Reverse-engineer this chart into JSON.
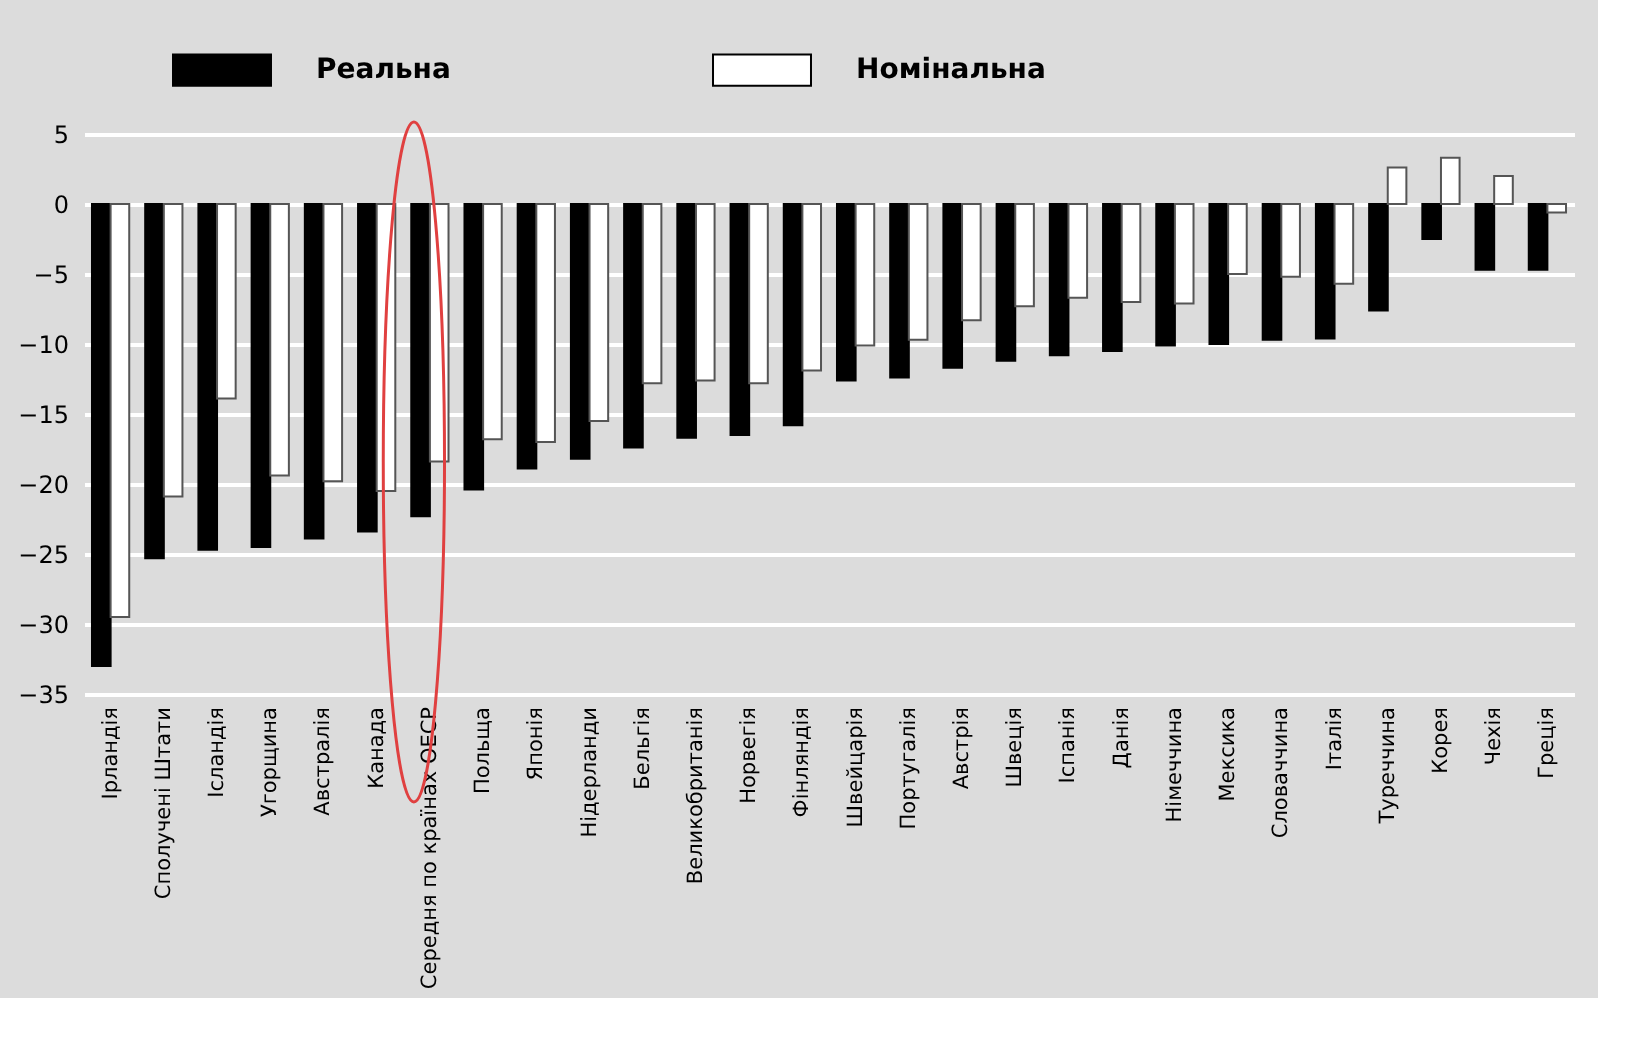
{
  "chart_data": {
    "type": "bar",
    "categories": [
      "Ірландія",
      "Сполучені  Штати",
      "Ісландія",
      "Угорщина",
      "Австралія",
      "Канада",
      "Середня по країнах ОЕСР",
      "Польща",
      "Японія",
      "Нідерланди",
      "Бельгія",
      "Великобританія",
      "Норвегія",
      "Фінляндія",
      "Швейцарія",
      "Португалія",
      "Австрія",
      "Швеція",
      "Іспанія",
      "Данія",
      "Німеччина",
      "Мексика",
      "Словаччина",
      "Італія",
      "Туреччина",
      "Корея",
      "Чехія",
      "Греція"
    ],
    "series": [
      {
        "name": "Реальна",
        "color": "#000000",
        "values": [
          -33.0,
          -25.3,
          -24.7,
          -24.5,
          -23.9,
          -23.4,
          -22.3,
          -20.4,
          -18.9,
          -18.2,
          -17.4,
          -16.7,
          -16.5,
          -15.8,
          -12.6,
          -12.4,
          -11.7,
          -11.2,
          -10.8,
          -10.5,
          -10.1,
          -10.0,
          -9.7,
          -9.6,
          -7.6,
          -2.5,
          -4.7,
          -4.7
        ]
      },
      {
        "name": "Номінальна",
        "color": "#ffffff",
        "values": [
          -29.5,
          -20.9,
          -13.9,
          -19.4,
          -19.8,
          -20.5,
          -18.4,
          -16.8,
          -17.0,
          -15.5,
          -12.8,
          -12.6,
          -12.8,
          -11.9,
          -10.1,
          -9.7,
          -8.3,
          -7.3,
          -6.7,
          -7.0,
          -7.1,
          -5.0,
          -5.2,
          -5.7,
          2.6,
          3.3,
          2.0,
          -0.6
        ]
      }
    ],
    "ylim": [
      -35,
      5
    ],
    "yticks": [
      -35,
      -30,
      -25,
      -20,
      -15,
      -10,
      -5,
      0,
      5
    ],
    "grid": "y",
    "legend": "top"
  }
}
